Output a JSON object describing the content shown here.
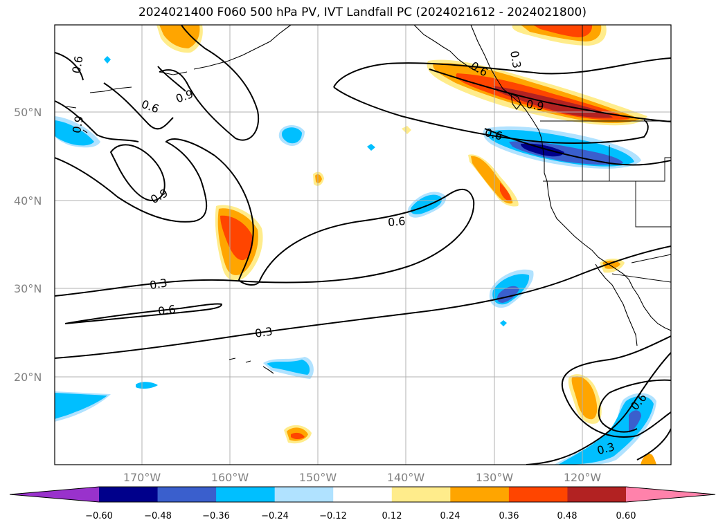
{
  "title": "2024021400 F060 500 hPa PV, IVT Landfall PC (2024021612 - 2024021800)",
  "lat_labels": [
    "50°N",
    "40°N",
    "30°N",
    "20°N"
  ],
  "lon_labels": [
    "170°W",
    "160°W",
    "150°W",
    "140°W",
    "130°W",
    "120°W"
  ],
  "pv_contour_labels": [
    "0.6",
    "0.9",
    "0.6",
    "0.9",
    "0.6",
    "0.9",
    "0.3",
    "0.6",
    "0.6",
    "0.3",
    "0.6",
    "0.3",
    "0.6",
    "0.3",
    "0.9"
  ],
  "colorbar": {
    "tick_labels": [
      "−0.60",
      "−0.48",
      "−0.36",
      "−0.24",
      "−0.12",
      "0.12",
      "0.24",
      "0.36",
      "0.48",
      "0.60"
    ],
    "colors": [
      "#9932cc",
      "#00008b",
      "#3a5fcd",
      "#00bfff",
      "#b0e2ff",
      "#ffffff",
      "#ffec8b",
      "#ffa500",
      "#ff4500",
      "#b22222",
      "#ff82ab"
    ]
  },
  "fill_colors": {
    "neg_strong": "#00008b",
    "neg_med": "#3a5fcd",
    "neg": "#00bfff",
    "neg_weak": "#b0e2ff",
    "pos_weak": "#ffec8b",
    "pos": "#ffa500",
    "pos_med": "#ff4500",
    "pos_strong": "#b22222"
  }
}
